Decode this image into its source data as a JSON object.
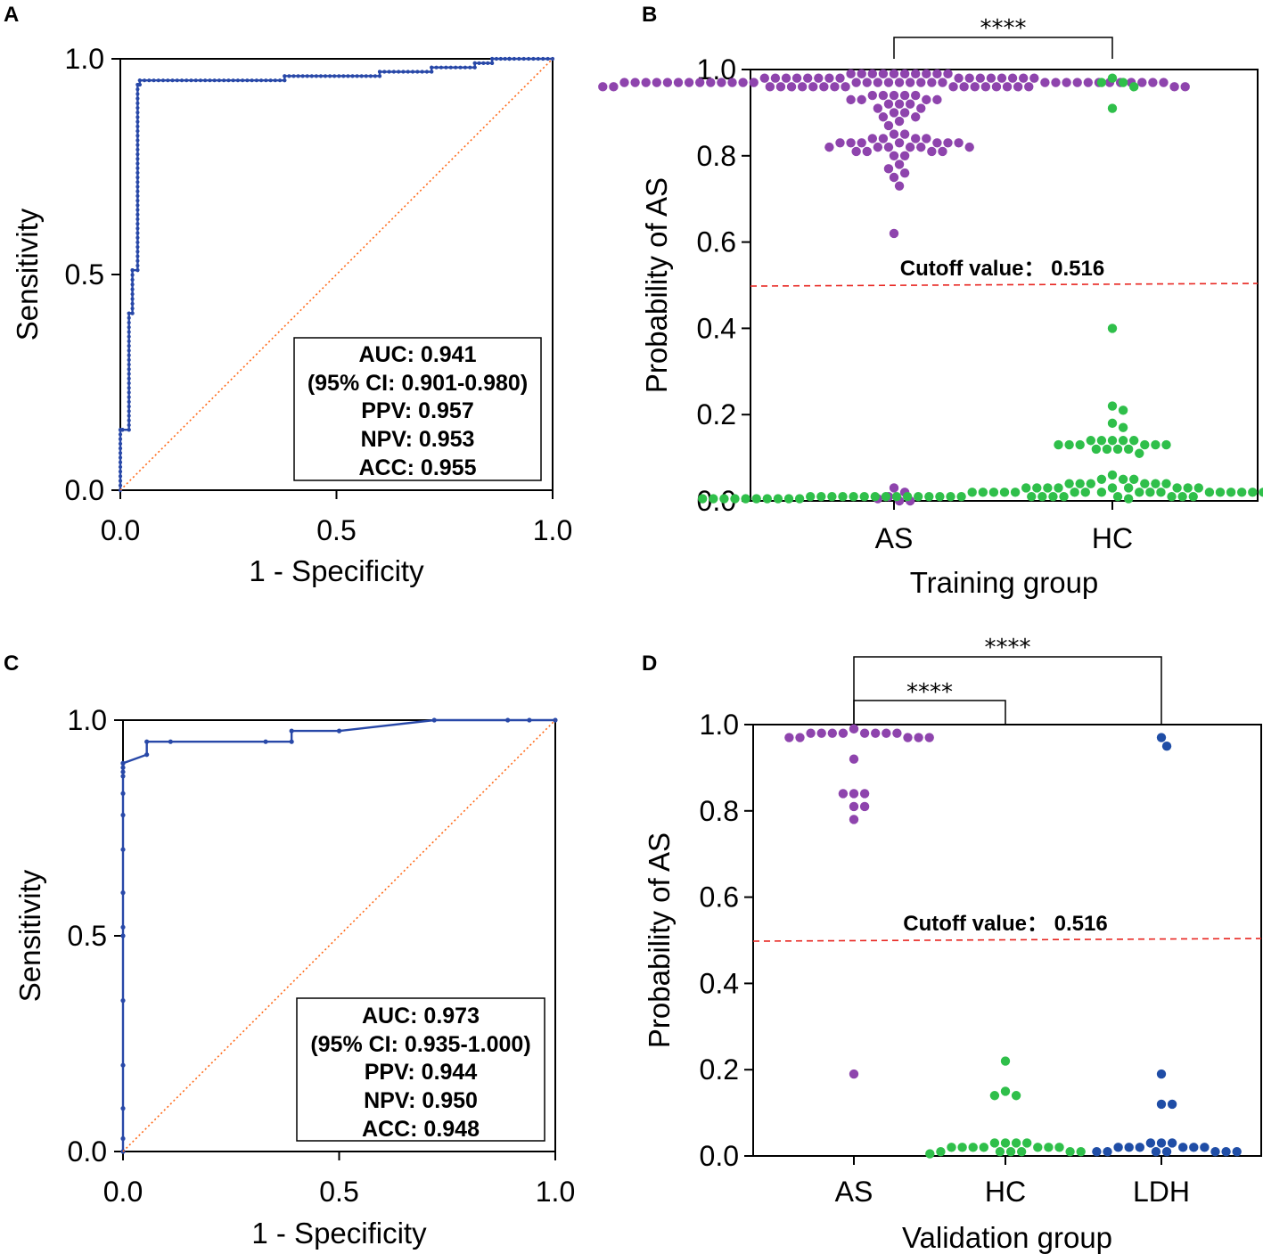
{
  "colors": {
    "roc_line": "#2848a8",
    "diagonal": "#ff6a1a",
    "cutoff_line": "#e8241f",
    "AS": "#8e44ad",
    "HC": "#2fbf4a",
    "LDH": "#1f4da6"
  },
  "chart_data": [
    {
      "panel": "A",
      "type": "line",
      "xlabel": "1 - Specificity",
      "ylabel": "Sensitivity",
      "xlim": [
        0,
        1
      ],
      "ylim": [
        0,
        1
      ],
      "xticks": [
        "0.0",
        "0.5",
        "1.0"
      ],
      "yticks": [
        "0.0",
        "0.5",
        "1.0"
      ],
      "series": [
        {
          "name": "ROC",
          "style": "step-dots",
          "x": [
            0,
            0,
            0.005,
            0.005,
            0.02,
            0.02,
            0.028,
            0.028,
            0.04,
            0.04,
            0.045,
            0.045,
            0.38,
            0.38,
            0.6,
            0.6,
            0.72,
            0.72,
            0.82,
            0.82,
            0.86,
            0.86,
            0.9,
            0.9,
            1.0
          ],
          "y": [
            0,
            0.14,
            0.14,
            0.14,
            0.14,
            0.41,
            0.41,
            0.51,
            0.51,
            0.94,
            0.94,
            0.95,
            0.95,
            0.96,
            0.96,
            0.97,
            0.97,
            0.98,
            0.98,
            0.99,
            0.99,
            1.0,
            1.0,
            1.0,
            1.0
          ]
        },
        {
          "name": "Reference",
          "style": "dotted",
          "x": [
            0,
            1
          ],
          "y": [
            0,
            1
          ]
        }
      ],
      "stats": [
        "AUC: 0.941",
        "(95% CI: 0.901-0.980)",
        "PPV: 0.957",
        "NPV: 0.953",
        "ACC: 0.955"
      ]
    },
    {
      "panel": "B",
      "type": "scatter",
      "xlabel": "Training group",
      "ylabel": "Probability of AS",
      "ylim": [
        0,
        1
      ],
      "yticks": [
        "0.0",
        "0.2",
        "0.4",
        "0.6",
        "0.8",
        "1.0"
      ],
      "categories": [
        "AS",
        "HC"
      ],
      "cutoff": {
        "value": 0.5,
        "label": "Cutoff value： 0.516"
      },
      "significance": [
        {
          "from": "AS",
          "to": "HC",
          "label": "****",
          "level": 1
        }
      ],
      "series": [
        {
          "name": "AS",
          "values": [
            0.99,
            0.99,
            0.99,
            0.99,
            0.99,
            0.99,
            0.99,
            0.99,
            0.99,
            0.99,
            0.98,
            0.98,
            0.98,
            0.98,
            0.98,
            0.98,
            0.98,
            0.98,
            0.98,
            0.98,
            0.98,
            0.98,
            0.98,
            0.98,
            0.98,
            0.98,
            0.97,
            0.97,
            0.97,
            0.97,
            0.97,
            0.97,
            0.97,
            0.97,
            0.97,
            0.97,
            0.97,
            0.97,
            0.97,
            0.97,
            0.97,
            0.97,
            0.97,
            0.97,
            0.97,
            0.97,
            0.97,
            0.97,
            0.97,
            0.97,
            0.97,
            0.97,
            0.97,
            0.97,
            0.97,
            0.97,
            0.97,
            0.97,
            0.97,
            0.97,
            0.96,
            0.96,
            0.96,
            0.96,
            0.96,
            0.96,
            0.96,
            0.96,
            0.96,
            0.96,
            0.96,
            0.96,
            0.96,
            0.96,
            0.96,
            0.96,
            0.96,
            0.96,
            0.96,
            0.96,
            0.94,
            0.94,
            0.94,
            0.94,
            0.94,
            0.93,
            0.93,
            0.93,
            0.93,
            0.92,
            0.92,
            0.92,
            0.91,
            0.91,
            0.9,
            0.9,
            0.89,
            0.89,
            0.88,
            0.87,
            0.85,
            0.85,
            0.84,
            0.84,
            0.84,
            0.84,
            0.83,
            0.83,
            0.83,
            0.83,
            0.83,
            0.83,
            0.83,
            0.82,
            0.82,
            0.82,
            0.82,
            0.82,
            0.82,
            0.81,
            0.81,
            0.81,
            0.81,
            0.8,
            0.8,
            0.78,
            0.77,
            0.76,
            0.75,
            0.73,
            0.62,
            0.03,
            0.02,
            0.01,
            0.005,
            0.0,
            0.0
          ]
        },
        {
          "name": "HC",
          "values": [
            0.98,
            0.97,
            0.97,
            0.96,
            0.91,
            0.4,
            0.22,
            0.21,
            0.18,
            0.17,
            0.14,
            0.14,
            0.14,
            0.14,
            0.14,
            0.13,
            0.13,
            0.13,
            0.13,
            0.13,
            0.13,
            0.12,
            0.12,
            0.12,
            0.12,
            0.11,
            0.06,
            0.05,
            0.05,
            0.05,
            0.04,
            0.04,
            0.04,
            0.04,
            0.04,
            0.04,
            0.03,
            0.03,
            0.03,
            0.03,
            0.03,
            0.03,
            0.03,
            0.03,
            0.03,
            0.02,
            0.02,
            0.02,
            0.02,
            0.02,
            0.02,
            0.02,
            0.02,
            0.02,
            0.02,
            0.02,
            0.02,
            0.02,
            0.02,
            0.02,
            0.02,
            0.02,
            0.01,
            0.01,
            0.01,
            0.01,
            0.01,
            0.01,
            0.01,
            0.01,
            0.01,
            0.01,
            0.01,
            0.01,
            0.01,
            0.01,
            0.01,
            0.01,
            0.01,
            0.01,
            0.01,
            0.01,
            0.01,
            0.01,
            0.01,
            0.01,
            0.01,
            0.01,
            0.01,
            0.01,
            0.01,
            0.01,
            0.01,
            0.01,
            0.01,
            0.01,
            0.01,
            0.01,
            0.01,
            0.01,
            0.005,
            0.005,
            0.005,
            0.005,
            0.005,
            0.005,
            0.005,
            0.005,
            0.005,
            0.005,
            0.005,
            0.005,
            0.005,
            0.005,
            0.005,
            0.005,
            0.005,
            0.005,
            0.005,
            0.005
          ]
        }
      ]
    },
    {
      "panel": "C",
      "type": "line",
      "xlabel": "1 - Specificity",
      "ylabel": "Sensitivity",
      "xlim": [
        0,
        1
      ],
      "ylim": [
        0,
        1
      ],
      "xticks": [
        "0.0",
        "0.5",
        "1.0"
      ],
      "yticks": [
        "0.0",
        "0.5",
        "1.0"
      ],
      "series": [
        {
          "name": "ROC",
          "style": "line-dots",
          "x": [
            0,
            0,
            0,
            0,
            0,
            0,
            0,
            0,
            0,
            0,
            0,
            0,
            0,
            0,
            0,
            0,
            0.055,
            0.055,
            0.11,
            0.33,
            0.39,
            0.39,
            0.5,
            0.72,
            0.89,
            0.94,
            1.0
          ],
          "y": [
            0,
            0.03,
            0.1,
            0.2,
            0.35,
            0.5,
            0.52,
            0.6,
            0.7,
            0.78,
            0.83,
            0.87,
            0.88,
            0.89,
            0.9,
            0.9,
            0.92,
            0.95,
            0.95,
            0.95,
            0.95,
            0.975,
            0.975,
            1.0,
            1.0,
            1.0,
            1.0
          ]
        },
        {
          "name": "Reference",
          "style": "dotted",
          "x": [
            0,
            1
          ],
          "y": [
            0,
            1
          ]
        }
      ],
      "stats": [
        "AUC: 0.973",
        "(95% CI: 0.935-1.000)",
        "PPV: 0.944",
        "NPV: 0.950",
        "ACC: 0.948"
      ]
    },
    {
      "panel": "D",
      "type": "scatter",
      "xlabel": "Validation group",
      "ylabel": "Probability of AS",
      "ylim": [
        0,
        1
      ],
      "yticks": [
        "0.0",
        "0.2",
        "0.4",
        "0.6",
        "0.8",
        "1.0"
      ],
      "categories": [
        "AS",
        "HC",
        "LDH"
      ],
      "cutoff": {
        "value": 0.5,
        "label": "Cutoff value： 0.516"
      },
      "significance": [
        {
          "from": "AS",
          "to": "HC",
          "label": "****",
          "level": 1
        },
        {
          "from": "AS",
          "to": "LDH",
          "label": "****",
          "level": 2
        }
      ],
      "series": [
        {
          "name": "AS",
          "values": [
            0.99,
            0.98,
            0.98,
            0.98,
            0.98,
            0.98,
            0.98,
            0.98,
            0.98,
            0.97,
            0.97,
            0.97,
            0.97,
            0.97,
            0.92,
            0.84,
            0.84,
            0.84,
            0.81,
            0.81,
            0.78,
            0.19
          ]
        },
        {
          "name": "HC",
          "values": [
            0.22,
            0.15,
            0.14,
            0.14,
            0.03,
            0.03,
            0.03,
            0.03,
            0.02,
            0.02,
            0.02,
            0.02,
            0.02,
            0.02,
            0.02,
            0.01,
            0.01,
            0.01,
            0.01,
            0.01,
            0.01,
            0.005
          ]
        },
        {
          "name": "LDH",
          "values": [
            0.97,
            0.95,
            0.19,
            0.12,
            0.12,
            0.03,
            0.03,
            0.03,
            0.02,
            0.02,
            0.02,
            0.02,
            0.02,
            0.02,
            0.01,
            0.01,
            0.01,
            0.01,
            0.01,
            0.01,
            0.01
          ]
        }
      ]
    }
  ]
}
